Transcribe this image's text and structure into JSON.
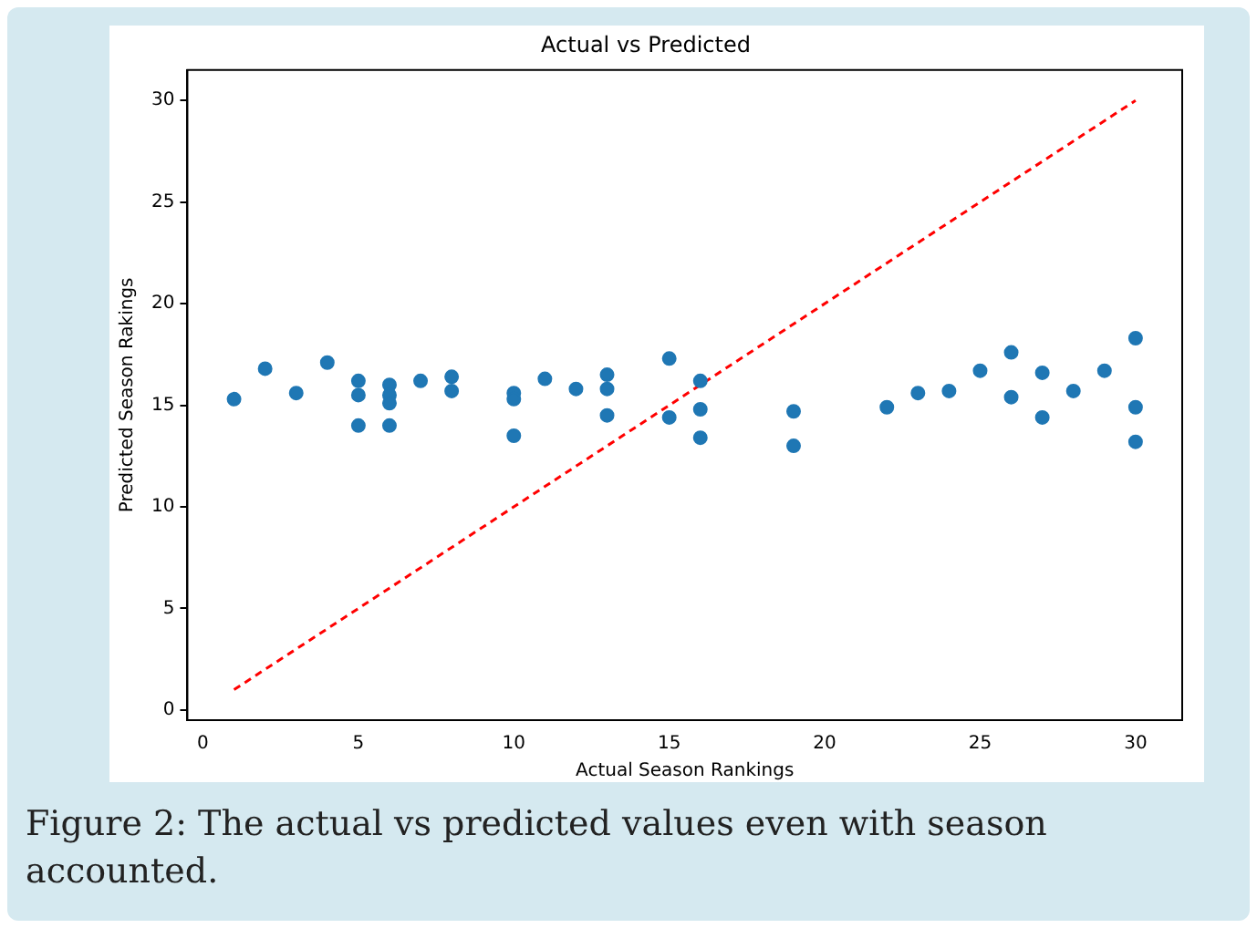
{
  "chart_data": {
    "type": "scatter",
    "title": "Actual vs Predicted",
    "xlabel": "Actual Season Rankings",
    "ylabel": "Predicted Season Rakings",
    "annotations": [
      "Figure 2: The actual vs predicted values even with season accounted."
    ],
    "xlim": [
      -0.5,
      31.5
    ],
    "ylim": [
      -0.5,
      31.5
    ],
    "xticks": [
      0,
      5,
      10,
      15,
      20,
      25,
      30
    ],
    "yticks": [
      0,
      5,
      10,
      15,
      20,
      25,
      30
    ],
    "grid": false,
    "legend": false,
    "series": [
      {
        "color": "#1f77b4",
        "marker": "circle",
        "x": [
          1,
          2,
          3,
          4,
          5,
          5,
          5,
          6,
          6,
          6,
          6,
          7,
          8,
          8,
          10,
          10,
          10,
          11,
          12,
          13,
          13,
          13,
          15,
          15,
          16,
          16,
          16,
          19,
          19,
          22,
          23,
          24,
          25,
          26,
          26,
          27,
          27,
          28,
          29,
          30,
          30,
          30
        ],
        "values": [
          15.3,
          16.8,
          15.6,
          17.1,
          16.2,
          15.5,
          14.0,
          16.0,
          15.5,
          15.1,
          14.0,
          16.2,
          16.4,
          15.7,
          15.6,
          15.3,
          13.5,
          16.3,
          15.8,
          16.5,
          15.8,
          14.5,
          17.3,
          14.4,
          16.2,
          14.8,
          13.4,
          14.7,
          13.0,
          14.9,
          15.6,
          15.7,
          16.7,
          17.6,
          15.4,
          16.6,
          14.4,
          15.7,
          16.7,
          18.3,
          14.9,
          13.2
        ]
      },
      {
        "type": "line",
        "color": "#ff0000",
        "line_style": "dashed",
        "marker": "none",
        "x": [
          1,
          30
        ],
        "values": [
          1,
          30
        ]
      }
    ]
  }
}
